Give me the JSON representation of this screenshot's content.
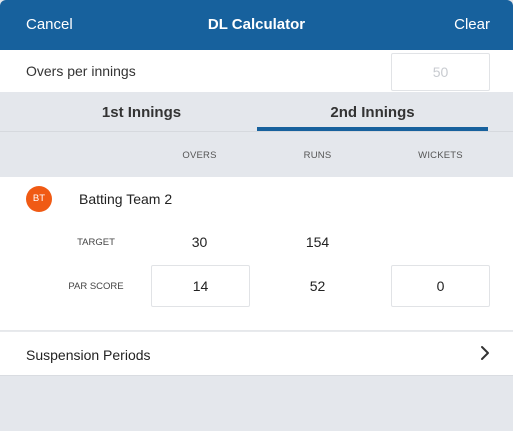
{
  "navbar": {
    "cancel": "Cancel",
    "title": "DL Calculator",
    "clear": "Clear"
  },
  "overs": {
    "label": "Overs per innings",
    "placeholder": "50"
  },
  "tabs": [
    {
      "label": "1st Innings"
    },
    {
      "label": "2nd Innings",
      "active": true
    }
  ],
  "columns": {
    "overs": "OVERS",
    "runs": "RUNS",
    "wickets": "WICKETS"
  },
  "team": {
    "badge": "BT",
    "name": "Batting Team 2",
    "badge_color": "#f05a14",
    "target": {
      "label": "TARGET",
      "overs": "30",
      "runs": "154"
    },
    "par": {
      "label": "PAR SCORE",
      "overs": "14",
      "runs": "52",
      "wickets": "0"
    }
  },
  "suspension": {
    "label": "Suspension Periods",
    "icon": "chevron-right-icon"
  },
  "colors": {
    "primary": "#17619d",
    "background": "#e4e7ec",
    "card": "#ffffff"
  }
}
